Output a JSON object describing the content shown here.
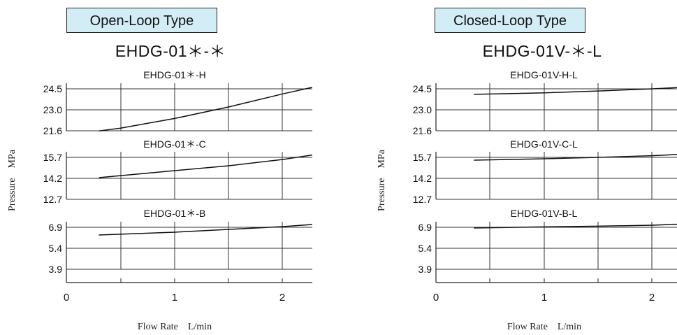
{
  "chart_data": [
    {
      "type": "line",
      "title": "Open-Loop Type",
      "subtitle": "EHDG-01＊-＊",
      "xlabel": "Flow Rate　L/min",
      "ylabel": "Pressure　MPa",
      "x_ticks": [
        "0",
        "1",
        "2"
      ],
      "xlim": [
        0,
        2.27
      ],
      "grid": true,
      "panels": [
        {
          "name": "EHDG-01＊-H",
          "y_ticks": [
            "24.5",
            "23.0",
            "21.6"
          ],
          "ylim": [
            21.6,
            24.5
          ],
          "series": [
            {
              "x": [
                0.3,
                0.5,
                1.0,
                1.5,
                2.0,
                2.27
              ],
              "y": [
                21.59,
                21.78,
                22.45,
                23.25,
                24.15,
                24.6
              ]
            }
          ]
        },
        {
          "name": "EHDG-01＊-C",
          "y_ticks": [
            "15.7",
            "14.2",
            "12.7"
          ],
          "ylim": [
            12.7,
            15.7
          ],
          "series": [
            {
              "x": [
                0.3,
                1.0,
                1.5,
                2.0,
                2.27
              ],
              "y": [
                14.25,
                14.75,
                15.1,
                15.55,
                15.87
              ]
            }
          ]
        },
        {
          "name": "EHDG-01＊-B",
          "y_ticks": [
            "6.9",
            "5.4",
            "3.9"
          ],
          "ylim": [
            3.9,
            6.9
          ],
          "series": [
            {
              "x": [
                0.3,
                1.0,
                1.5,
                2.0,
                2.27
              ],
              "y": [
                6.35,
                6.55,
                6.75,
                6.95,
                7.1
              ]
            }
          ]
        }
      ]
    },
    {
      "type": "line",
      "title": "Closed-Loop Type",
      "subtitle": "EHDG-01V-＊-L",
      "xlabel": "Flow Rate　L/min",
      "ylabel": "Pressure　MPa",
      "x_ticks": [
        "0",
        "1",
        "2"
      ],
      "xlim": [
        0,
        2.27
      ],
      "grid": true,
      "panels": [
        {
          "name": "EHDG-01V-H-L",
          "y_ticks": [
            "24.5",
            "23.0",
            "21.6"
          ],
          "ylim": [
            21.6,
            24.5
          ],
          "series": [
            {
              "x": [
                0.35,
                1.0,
                1.5,
                2.0,
                2.27
              ],
              "y": [
                24.12,
                24.22,
                24.35,
                24.5,
                24.6
              ]
            }
          ]
        },
        {
          "name": "EHDG-01V-C-L",
          "y_ticks": [
            "15.7",
            "14.2",
            "12.7"
          ],
          "ylim": [
            12.7,
            15.7
          ],
          "series": [
            {
              "x": [
                0.35,
                1.0,
                1.5,
                2.0,
                2.27
              ],
              "y": [
                15.5,
                15.6,
                15.7,
                15.82,
                15.92
              ]
            }
          ]
        },
        {
          "name": "EHDG-01V-B-L",
          "y_ticks": [
            "6.9",
            "5.4",
            "3.9"
          ],
          "ylim": [
            3.9,
            6.9
          ],
          "series": [
            {
              "x": [
                0.35,
                1.0,
                1.5,
                2.0,
                2.27
              ],
              "y": [
                6.85,
                6.93,
                6.98,
                7.05,
                7.13
              ]
            }
          ]
        }
      ]
    }
  ]
}
